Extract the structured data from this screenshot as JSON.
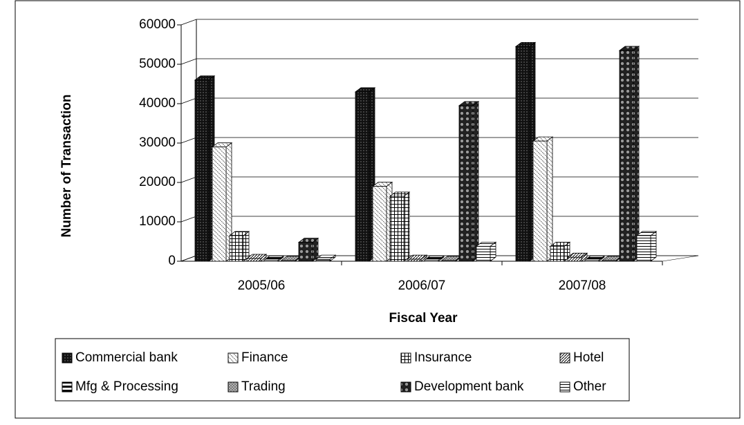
{
  "chart_data": {
    "type": "bar3d",
    "y_label": "Number of Transaction",
    "x_label": "Fiscal Year",
    "categories": [
      "2005/06",
      "2006/07",
      "2007/08"
    ],
    "ylim": [
      0,
      60000
    ],
    "yticks": [
      0,
      10000,
      20000,
      30000,
      40000,
      50000,
      60000
    ],
    "grid": true,
    "series": [
      {
        "name": "Commercial bank",
        "color": "#111111",
        "pattern": "dots",
        "values": [
          46000,
          43000,
          54500
        ]
      },
      {
        "name": "Finance",
        "color": "#ffffff",
        "pattern": "diagonal",
        "values": [
          29000,
          19000,
          30500
        ]
      },
      {
        "name": "Insurance",
        "color": "#ffffff",
        "pattern": "grid",
        "values": [
          6500,
          16500,
          3800
        ]
      },
      {
        "name": "Hotel",
        "color": "#ffffff",
        "pattern": "hatch",
        "values": [
          700,
          500,
          1000
        ]
      },
      {
        "name": "Mfg & Processing",
        "color": "#ffffff",
        "pattern": "half",
        "values": [
          300,
          300,
          300
        ]
      },
      {
        "name": "Trading",
        "color": "#bbbbbb",
        "pattern": "cross",
        "values": [
          200,
          200,
          200
        ]
      },
      {
        "name": "Development bank",
        "color": "#555555",
        "pattern": "circles",
        "values": [
          4800,
          39500,
          53500
        ]
      },
      {
        "name": "Other",
        "color": "#ffffff",
        "pattern": "hlines",
        "values": [
          500,
          3800,
          6500
        ]
      }
    ]
  }
}
